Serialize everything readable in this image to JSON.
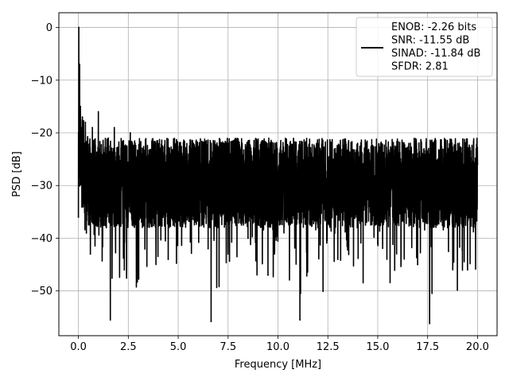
{
  "chart_data": {
    "type": "line",
    "title": "",
    "xlabel": "Frequency [MHz]",
    "ylabel": "PSD [dB]",
    "xlim": [
      -0.98,
      20.98
    ],
    "ylim": [
      -58.5,
      2.8
    ],
    "xticks": [
      0.0,
      2.5,
      5.0,
      7.5,
      10.0,
      12.5,
      15.0,
      17.5,
      20.0
    ],
    "xtick_labels": [
      "0.0",
      "2.5",
      "5.0",
      "7.5",
      "10.0",
      "12.5",
      "15.0",
      "17.5",
      "20.0"
    ],
    "yticks": [
      0,
      -10,
      -20,
      -30,
      -40,
      -50
    ],
    "ytick_labels": [
      "0",
      "−10",
      "−20",
      "−30",
      "−40",
      "−50"
    ],
    "grid": true,
    "legend_position": "top-right",
    "series": [
      {
        "color": "#000000",
        "x": [
          0.0,
          0.02,
          0.04,
          0.06,
          0.08,
          0.1,
          0.13,
          0.16,
          0.2,
          0.25,
          0.3,
          0.35,
          0.4,
          0.45,
          0.5,
          0.6,
          0.7,
          0.8,
          0.9,
          1.0,
          1.1,
          1.2,
          1.3,
          1.4,
          1.5,
          1.6,
          1.7,
          1.8,
          1.9,
          2.0,
          2.3,
          2.6,
          3.0,
          3.2,
          3.5,
          4.0,
          4.5,
          5.0,
          5.5,
          6.0,
          6.5,
          6.65,
          7.0,
          7.5,
          8.0,
          8.5,
          9.0,
          9.5,
          10.0,
          10.5,
          11.0,
          11.1,
          11.5,
          12.0,
          12.5,
          13.0,
          13.5,
          14.0,
          14.5,
          15.0,
          15.5,
          16.0,
          16.5,
          17.0,
          17.45,
          17.6,
          18.0,
          18.5,
          19.0,
          19.5,
          19.9,
          20.0
        ],
        "y": [
          -36,
          0,
          -12,
          -7,
          -24,
          -15,
          -29,
          -21,
          -17,
          -26,
          -33,
          -18,
          -39,
          -22,
          -30,
          -43,
          -19,
          -36,
          -27,
          -16,
          -33,
          -41,
          -24,
          -38,
          -21,
          -55.5,
          -30,
          -19,
          -37,
          -25,
          -46,
          -20,
          -33,
          -24,
          -37,
          -31,
          -44,
          -28,
          -34,
          -26,
          -42,
          -55.8,
          -30,
          -36,
          -27,
          -40,
          -32,
          -47,
          -29,
          -36,
          -33,
          -55.5,
          -28,
          -38,
          -31,
          -44,
          -26,
          -35,
          -30,
          -41,
          -32,
          -37,
          -29,
          -45,
          -33,
          -56.2,
          -30,
          -38,
          -32,
          -46,
          -35,
          -26
        ]
      }
    ],
    "legend_lines": [
      "ENOB: -2.26 bits",
      "SNR: -11.55 dB",
      "SINAD: -11.84 dB",
      "SFDR: 2.81"
    ]
  }
}
